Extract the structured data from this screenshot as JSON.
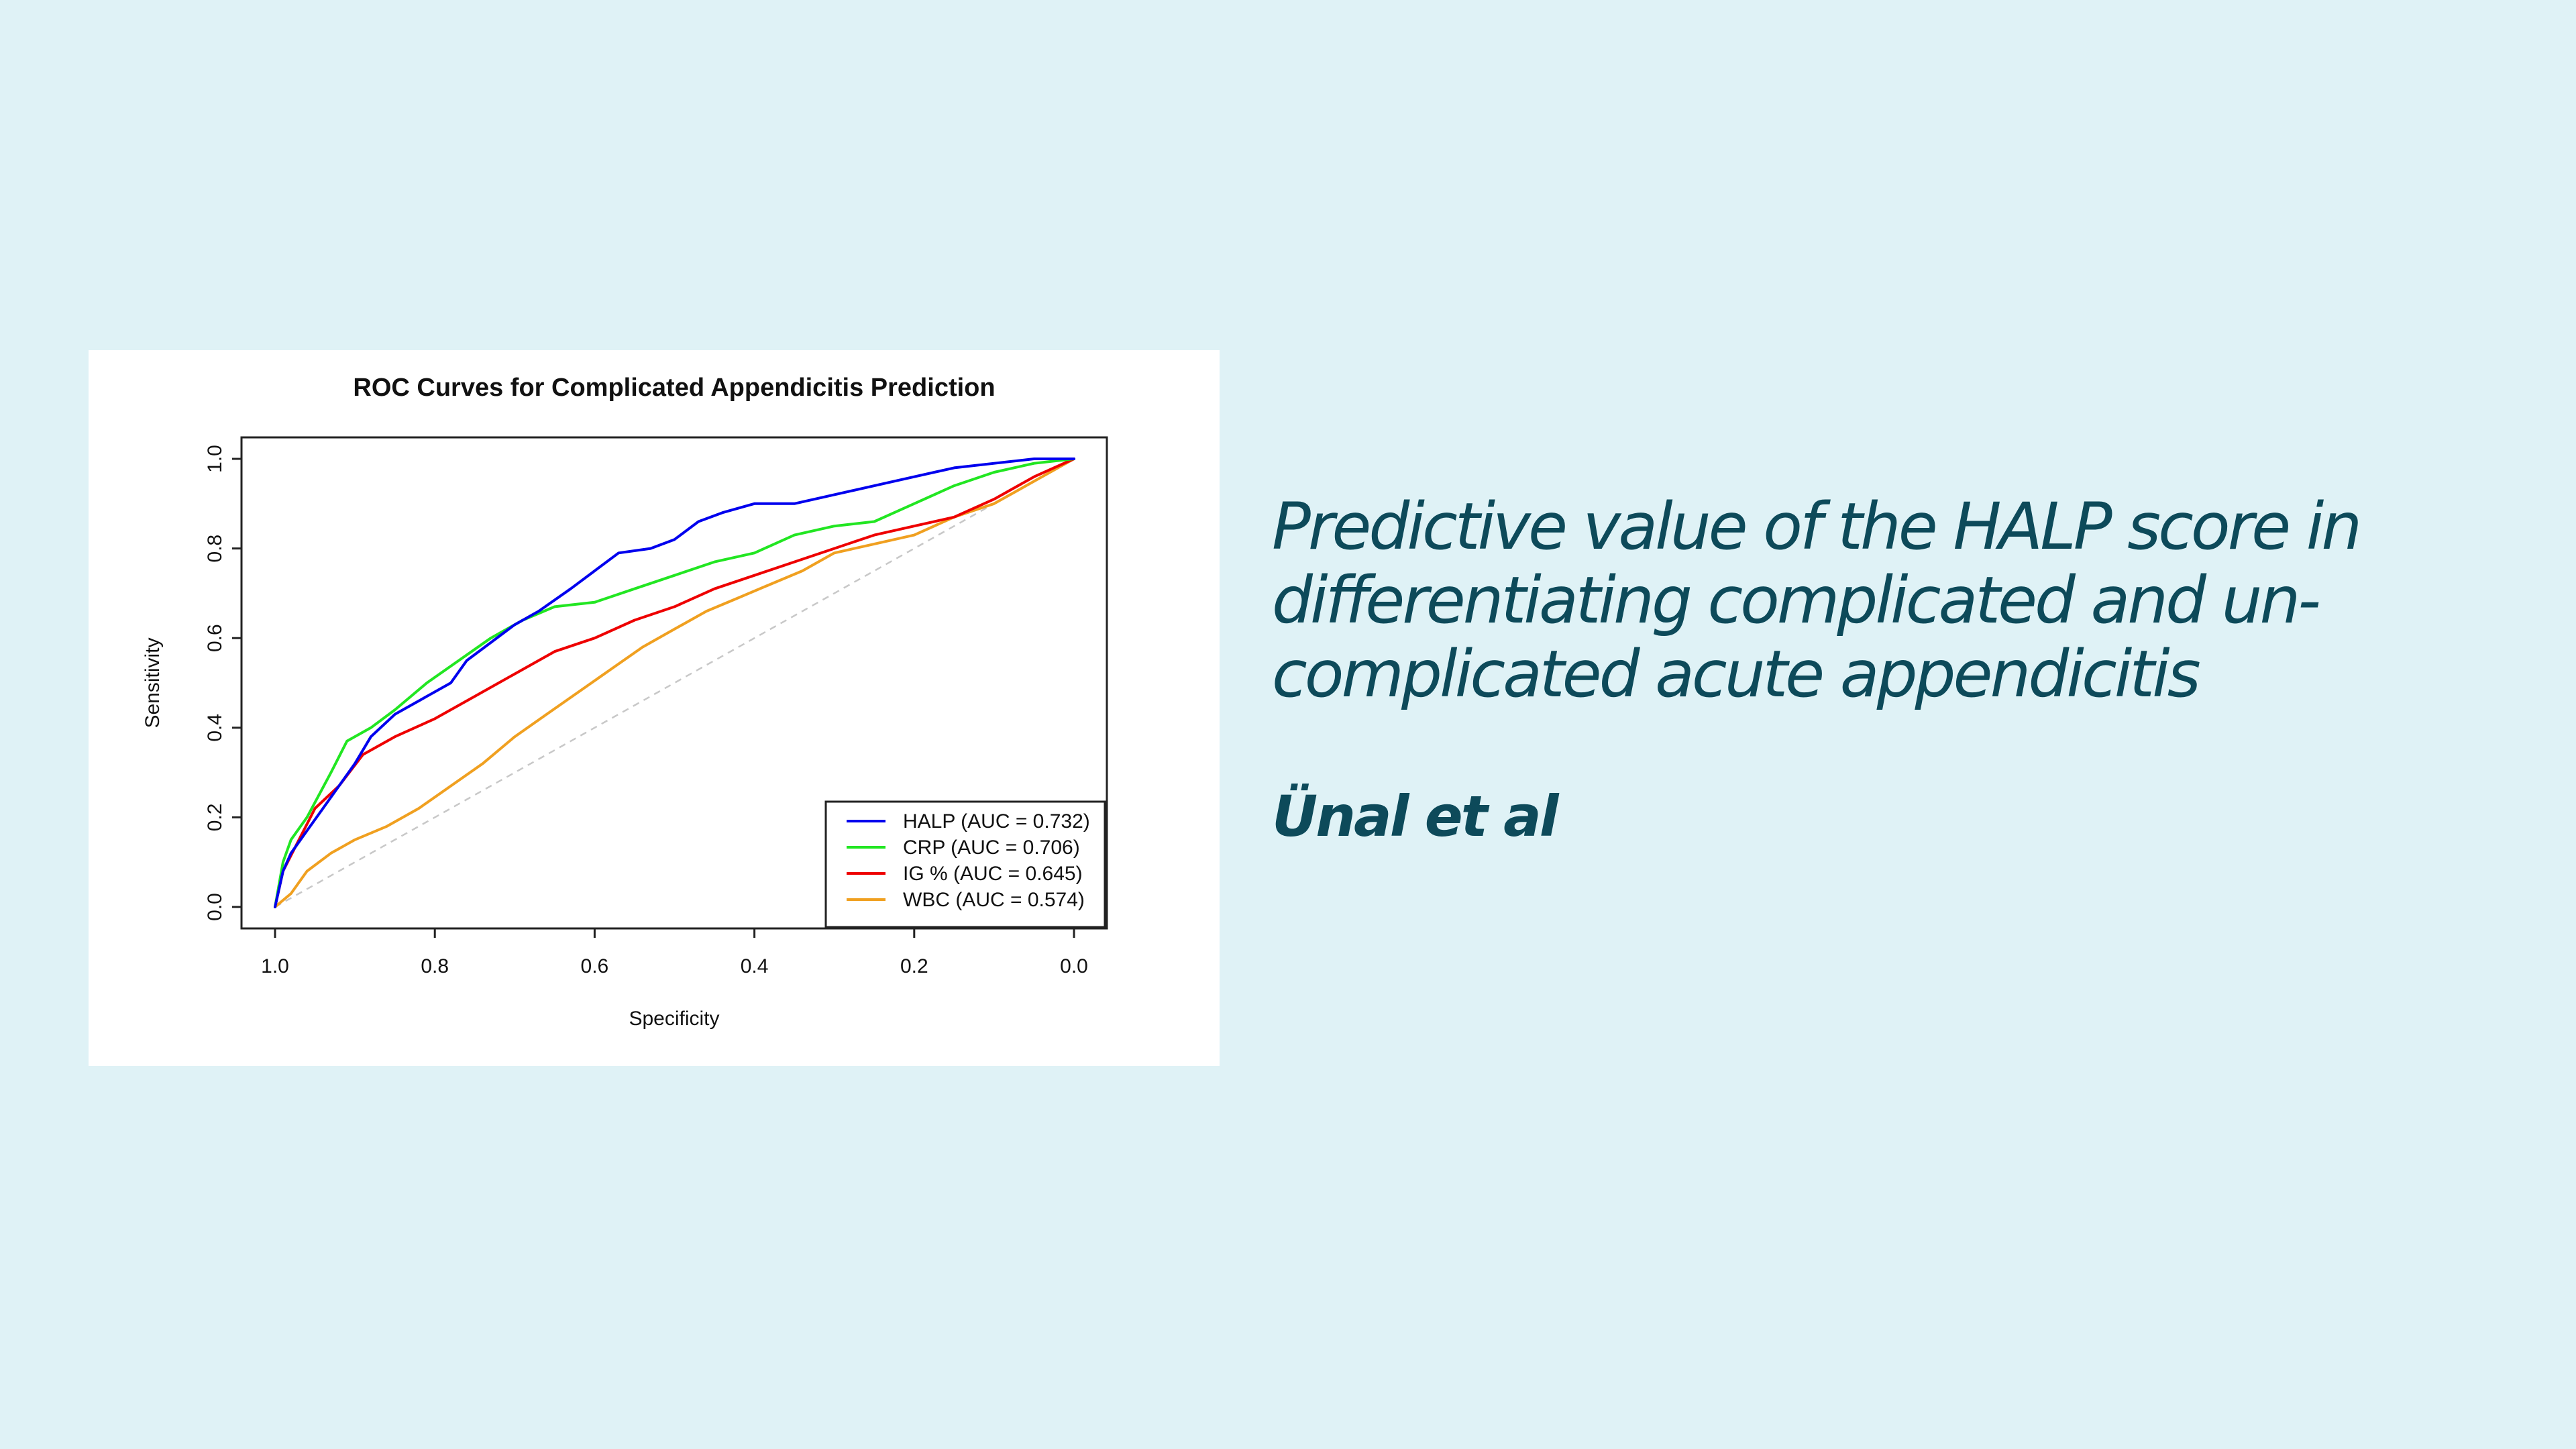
{
  "slide": {
    "headline": "Predictive value of the HALP score in differentiating complicated and un-complicated acute appendicitis",
    "authors": "Ünal et al",
    "background_color": "#dff2f6",
    "text_color": "#0d4a5a"
  },
  "chart_data": {
    "type": "line",
    "title": "ROC Curves for Complicated Appendicitis Prediction",
    "xlabel": "Specificity",
    "ylabel": "Sensitivity",
    "xlim": [
      1.0,
      0.0
    ],
    "ylim": [
      0.0,
      1.0
    ],
    "x_reversed": true,
    "x_ticks": [
      "1.0",
      "0.8",
      "0.6",
      "0.4",
      "0.2",
      "0.0"
    ],
    "y_ticks": [
      "0.0",
      "0.2",
      "0.4",
      "0.6",
      "0.8",
      "1.0"
    ],
    "grid": false,
    "legend_position": "bottom-right",
    "reference_line": {
      "from": [
        1.0,
        0.0
      ],
      "to": [
        0.0,
        1.0
      ],
      "color": "#c8c8c8",
      "style": "dashed"
    },
    "series": [
      {
        "name": "HALP (AUC = 0.732)",
        "color": "#0000ee",
        "points": [
          [
            1.0,
            0.0
          ],
          [
            0.99,
            0.08
          ],
          [
            0.98,
            0.12
          ],
          [
            0.96,
            0.17
          ],
          [
            0.94,
            0.22
          ],
          [
            0.92,
            0.27
          ],
          [
            0.9,
            0.32
          ],
          [
            0.88,
            0.38
          ],
          [
            0.85,
            0.43
          ],
          [
            0.82,
            0.46
          ],
          [
            0.78,
            0.5
          ],
          [
            0.76,
            0.55
          ],
          [
            0.73,
            0.59
          ],
          [
            0.7,
            0.63
          ],
          [
            0.67,
            0.66
          ],
          [
            0.63,
            0.71
          ],
          [
            0.6,
            0.75
          ],
          [
            0.57,
            0.79
          ],
          [
            0.53,
            0.8
          ],
          [
            0.5,
            0.82
          ],
          [
            0.47,
            0.86
          ],
          [
            0.44,
            0.88
          ],
          [
            0.4,
            0.9
          ],
          [
            0.35,
            0.9
          ],
          [
            0.3,
            0.92
          ],
          [
            0.25,
            0.94
          ],
          [
            0.2,
            0.96
          ],
          [
            0.15,
            0.98
          ],
          [
            0.1,
            0.99
          ],
          [
            0.05,
            1.0
          ],
          [
            0.0,
            1.0
          ]
        ]
      },
      {
        "name": "CRP (AUC = 0.706)",
        "color": "#22e622",
        "points": [
          [
            1.0,
            0.0
          ],
          [
            0.99,
            0.1
          ],
          [
            0.98,
            0.15
          ],
          [
            0.96,
            0.2
          ],
          [
            0.93,
            0.3
          ],
          [
            0.91,
            0.37
          ],
          [
            0.88,
            0.4
          ],
          [
            0.85,
            0.44
          ],
          [
            0.81,
            0.5
          ],
          [
            0.77,
            0.55
          ],
          [
            0.73,
            0.6
          ],
          [
            0.69,
            0.64
          ],
          [
            0.65,
            0.67
          ],
          [
            0.6,
            0.68
          ],
          [
            0.55,
            0.71
          ],
          [
            0.5,
            0.74
          ],
          [
            0.45,
            0.77
          ],
          [
            0.4,
            0.79
          ],
          [
            0.35,
            0.83
          ],
          [
            0.3,
            0.85
          ],
          [
            0.25,
            0.86
          ],
          [
            0.2,
            0.9
          ],
          [
            0.15,
            0.94
          ],
          [
            0.1,
            0.97
          ],
          [
            0.05,
            0.99
          ],
          [
            0.0,
            1.0
          ]
        ]
      },
      {
        "name": "IG % (AUC = 0.645)",
        "color": "#ee0000",
        "points": [
          [
            1.0,
            0.0
          ],
          [
            0.99,
            0.08
          ],
          [
            0.97,
            0.15
          ],
          [
            0.95,
            0.22
          ],
          [
            0.92,
            0.27
          ],
          [
            0.89,
            0.34
          ],
          [
            0.85,
            0.38
          ],
          [
            0.8,
            0.42
          ],
          [
            0.75,
            0.47
          ],
          [
            0.7,
            0.52
          ],
          [
            0.65,
            0.57
          ],
          [
            0.6,
            0.6
          ],
          [
            0.55,
            0.64
          ],
          [
            0.5,
            0.67
          ],
          [
            0.45,
            0.71
          ],
          [
            0.4,
            0.74
          ],
          [
            0.35,
            0.77
          ],
          [
            0.3,
            0.8
          ],
          [
            0.25,
            0.83
          ],
          [
            0.2,
            0.85
          ],
          [
            0.15,
            0.87
          ],
          [
            0.1,
            0.91
          ],
          [
            0.05,
            0.96
          ],
          [
            0.0,
            1.0
          ]
        ]
      },
      {
        "name": "WBC (AUC = 0.574)",
        "color": "#f0a020",
        "points": [
          [
            1.0,
            0.0
          ],
          [
            0.98,
            0.03
          ],
          [
            0.96,
            0.08
          ],
          [
            0.93,
            0.12
          ],
          [
            0.9,
            0.15
          ],
          [
            0.86,
            0.18
          ],
          [
            0.82,
            0.22
          ],
          [
            0.78,
            0.27
          ],
          [
            0.74,
            0.32
          ],
          [
            0.7,
            0.38
          ],
          [
            0.66,
            0.43
          ],
          [
            0.62,
            0.48
          ],
          [
            0.58,
            0.53
          ],
          [
            0.54,
            0.58
          ],
          [
            0.5,
            0.62
          ],
          [
            0.46,
            0.66
          ],
          [
            0.42,
            0.69
          ],
          [
            0.38,
            0.72
          ],
          [
            0.34,
            0.75
          ],
          [
            0.3,
            0.79
          ],
          [
            0.25,
            0.81
          ],
          [
            0.2,
            0.83
          ],
          [
            0.15,
            0.87
          ],
          [
            0.1,
            0.9
          ],
          [
            0.05,
            0.95
          ],
          [
            0.0,
            1.0
          ]
        ]
      }
    ]
  }
}
